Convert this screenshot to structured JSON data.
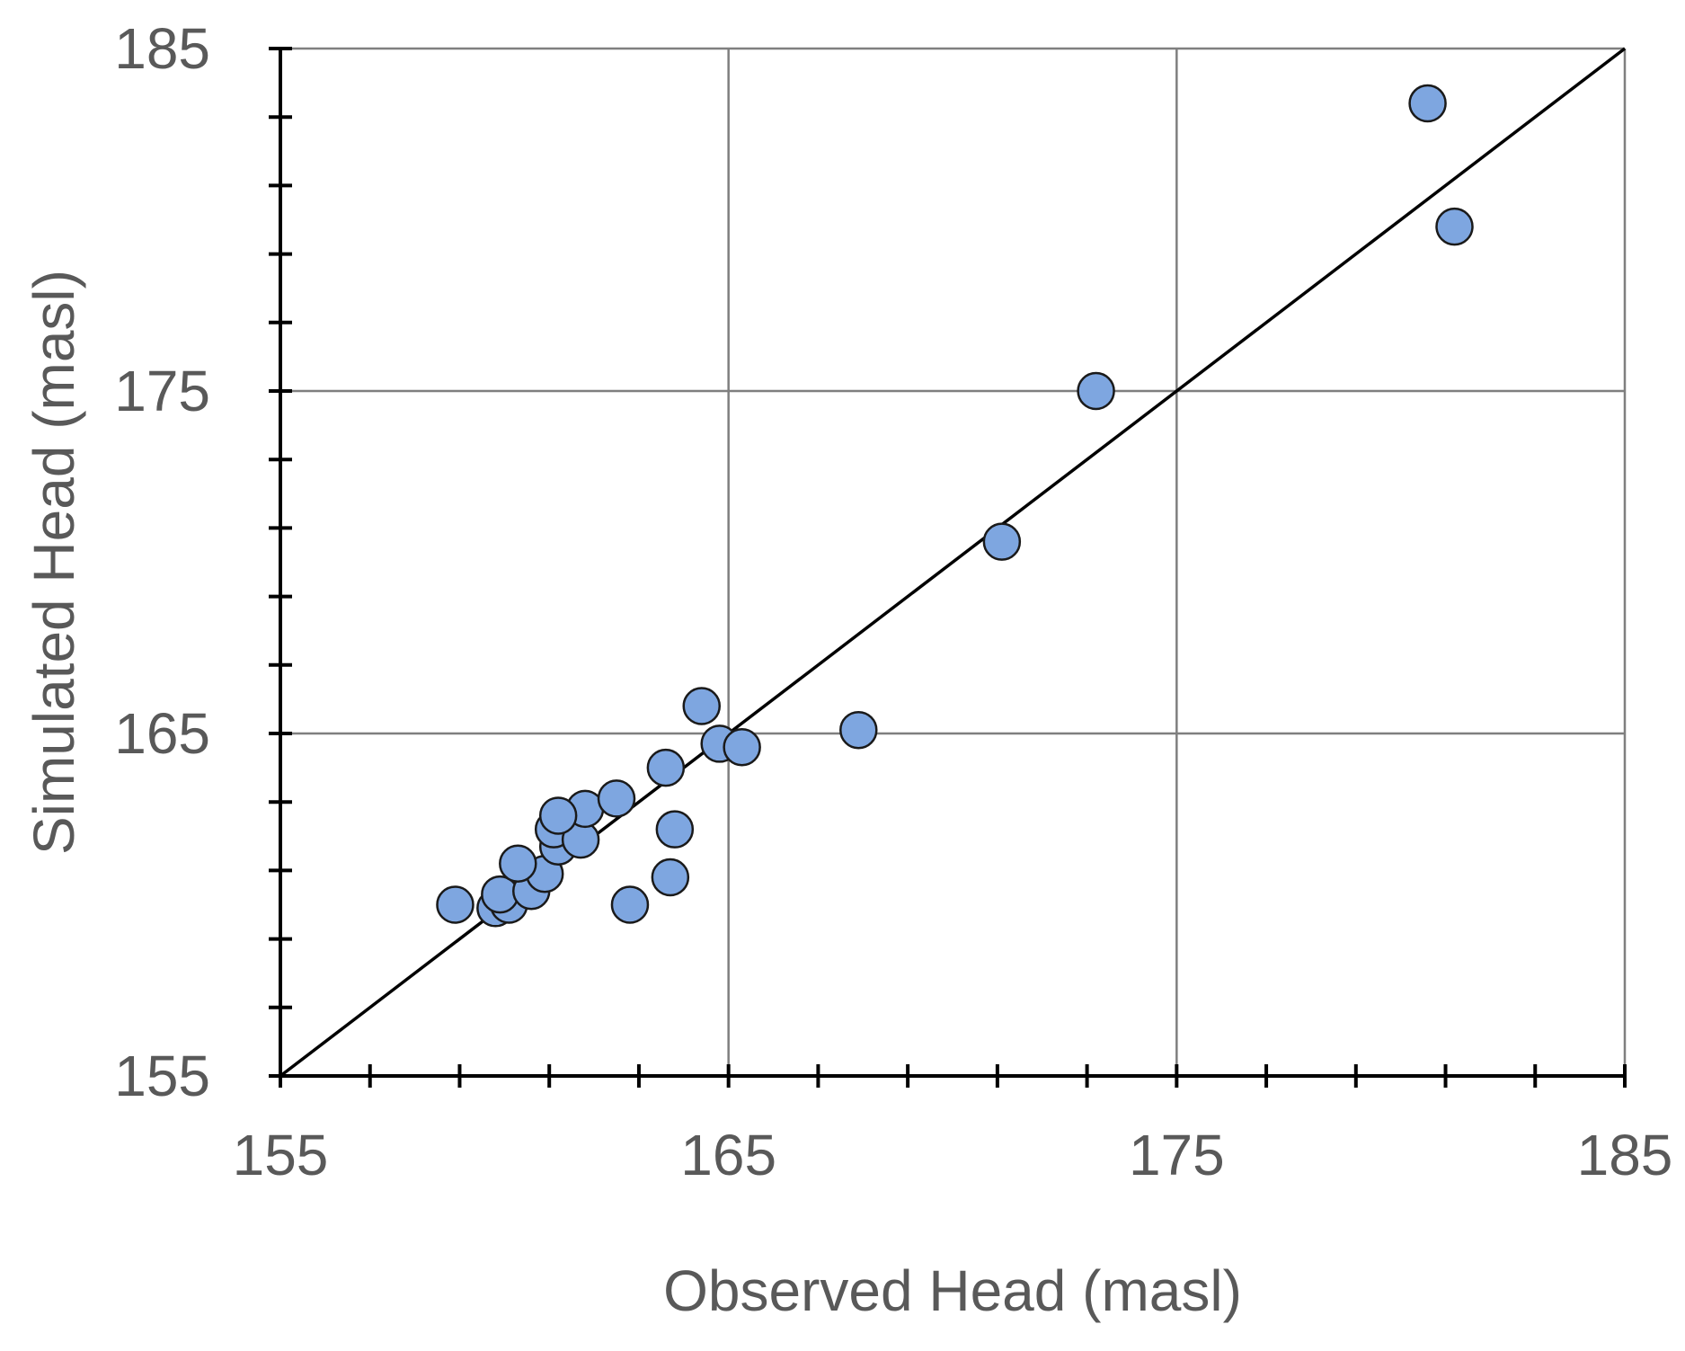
{
  "chart_data": {
    "type": "scatter",
    "title": "",
    "xlabel": "Observed Head (masl)",
    "ylabel": "Simulated Head (masl)",
    "xlim": [
      155,
      185
    ],
    "ylim": [
      155,
      185
    ],
    "x_ticks": [
      155,
      165,
      175,
      185
    ],
    "y_ticks": [
      155,
      165,
      175,
      185
    ],
    "x_tick_labels": [
      "155",
      "165",
      "175",
      "185"
    ],
    "y_tick_labels": [
      "155",
      "165",
      "175",
      "185"
    ],
    "minor_tick_step": 2,
    "grid": true,
    "legend": "none",
    "reference_line": {
      "type": "1:1",
      "from": [
        155,
        155
      ],
      "to": [
        185,
        185
      ]
    },
    "marker_color": "#7ea6e0",
    "series": [
      {
        "points": [
          {
            "x": 158.9,
            "y": 160.0
          },
          {
            "x": 159.8,
            "y": 159.9
          },
          {
            "x": 160.1,
            "y": 160.0
          },
          {
            "x": 159.9,
            "y": 160.3
          },
          {
            "x": 160.6,
            "y": 160.4
          },
          {
            "x": 160.9,
            "y": 160.9
          },
          {
            "x": 160.3,
            "y": 161.2
          },
          {
            "x": 161.2,
            "y": 161.7
          },
          {
            "x": 161.1,
            "y": 162.2
          },
          {
            "x": 161.7,
            "y": 161.9
          },
          {
            "x": 161.8,
            "y": 162.8
          },
          {
            "x": 161.2,
            "y": 162.6
          },
          {
            "x": 162.5,
            "y": 163.1
          },
          {
            "x": 162.8,
            "y": 160.0
          },
          {
            "x": 163.6,
            "y": 164.0
          },
          {
            "x": 163.8,
            "y": 162.2
          },
          {
            "x": 163.7,
            "y": 160.8
          },
          {
            "x": 164.4,
            "y": 165.8
          },
          {
            "x": 164.8,
            "y": 164.7
          },
          {
            "x": 165.3,
            "y": 164.6
          },
          {
            "x": 167.9,
            "y": 165.1
          },
          {
            "x": 171.1,
            "y": 170.6
          },
          {
            "x": 173.2,
            "y": 175.0
          },
          {
            "x": 180.6,
            "y": 183.4
          },
          {
            "x": 181.2,
            "y": 179.8
          }
        ]
      }
    ]
  }
}
